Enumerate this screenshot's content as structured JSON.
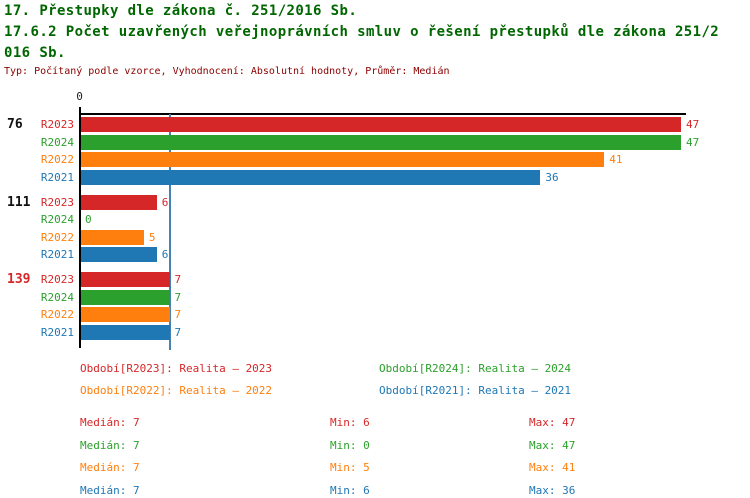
{
  "header": {
    "title_lines": [
      "17. Přestupky dle zákona č. 251/2016 Sb.",
      "17.6.2 Počet uzavřených veřejnoprávních smluv o řešení přestupků dle zákona 251/2",
      "016 Sb."
    ],
    "subtitle": "Typ: Počítaný podle vzorce, Vyhodnocení: Absolutní hodnoty, Průměr: Medián"
  },
  "colors": {
    "R2023": "#d62728",
    "R2024": "#2ca02c",
    "R2022": "#ff7f0e",
    "R2021": "#1f77b4",
    "title": "#006600",
    "subtitle": "#8b0000",
    "axis": "#000000",
    "median_line": "#4682b4",
    "group_label_default": "#111111",
    "group_label_highlight": "#d62728",
    "origin_tick": "#222222"
  },
  "chart_data": {
    "type": "bar",
    "orientation": "horizontal",
    "title": "17.6.2 Počet uzavřených veřejnoprávních smluv o řešení přestupků dle zákona 251/2016 Sb.",
    "x_axis": {
      "origin_label": "0",
      "min": 0,
      "max": 47.4,
      "grid": false
    },
    "median_line_value": 7,
    "series_order": [
      "R2023",
      "R2024",
      "R2022",
      "R2021"
    ],
    "groups": [
      {
        "label": "76",
        "highlight": false,
        "values": {
          "R2023": 47,
          "R2024": 47,
          "R2022": 41,
          "R2021": 36
        }
      },
      {
        "label": "111",
        "highlight": false,
        "values": {
          "R2023": 6,
          "R2024": 0,
          "R2022": 5,
          "R2021": 6
        }
      },
      {
        "label": "139",
        "highlight": true,
        "values": {
          "R2023": 7,
          "R2024": 7,
          "R2022": 7,
          "R2021": 7
        }
      }
    ]
  },
  "legend": {
    "items": [
      {
        "key": "R2023",
        "text": "Období[R2023]: Realita – 2023"
      },
      {
        "key": "R2024",
        "text": "Období[R2024]: Realita – 2024"
      },
      {
        "key": "R2022",
        "text": "Období[R2022]: Realita – 2022"
      },
      {
        "key": "R2021",
        "text": "Období[R2021]: Realita – 2021"
      }
    ]
  },
  "stats": {
    "labels": {
      "median": "Medián",
      "min": "Min",
      "max": "Max"
    },
    "rows": [
      {
        "key": "R2023",
        "median": 7,
        "min": 6,
        "max": 47
      },
      {
        "key": "R2024",
        "median": 7,
        "min": 0,
        "max": 47
      },
      {
        "key": "R2022",
        "median": 7,
        "min": 5,
        "max": 41
      },
      {
        "key": "R2021",
        "median": 7,
        "min": 6,
        "max": 36
      }
    ]
  }
}
